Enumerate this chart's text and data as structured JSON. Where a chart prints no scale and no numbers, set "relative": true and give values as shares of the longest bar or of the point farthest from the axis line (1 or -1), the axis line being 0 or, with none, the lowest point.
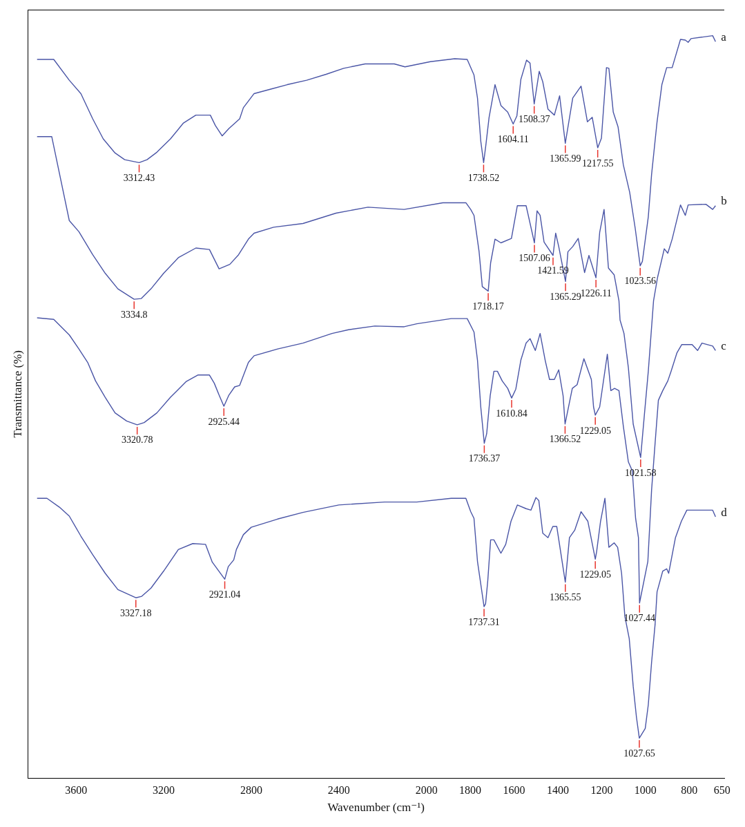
{
  "chart_data": {
    "type": "line",
    "relative": true,
    "xlabel": "Wavenumber (cm⁻¹)",
    "ylabel": "Transmittance (%)",
    "xlim": [
      3820,
      640
    ],
    "xticks": [
      3600,
      3200,
      2800,
      2400,
      2000,
      1800,
      1600,
      1400,
      1200,
      1000,
      800,
      650
    ],
    "grid": false,
    "legend": false,
    "marker": "none",
    "line_style": "solid",
    "series": [
      {
        "name": "a",
        "color": "#4a55a6",
        "x": [
          3778,
          3702,
          3631,
          3578,
          3524,
          3476,
          3422,
          3378,
          3312,
          3276,
          3231,
          3169,
          3111,
          3053,
          2987,
          2964,
          2933,
          2902,
          2853,
          2836,
          2787,
          2711,
          2636,
          2547,
          2458,
          2378,
          2280,
          2147,
          2098,
          1982,
          1871,
          1814,
          1783,
          1767,
          1752,
          1739,
          1729,
          1714,
          1687,
          1660,
          1629,
          1604,
          1587,
          1569,
          1543,
          1527,
          1508,
          1485,
          1469,
          1445,
          1416,
          1392,
          1366,
          1332,
          1294,
          1265,
          1243,
          1218,
          1201,
          1178,
          1167,
          1147,
          1125,
          1101,
          1072,
          1047,
          1024,
          1014,
          987,
          972,
          947,
          925,
          903,
          878,
          840,
          818,
          805,
          792,
          693,
          680
        ],
        "values": [
          0.968,
          0.968,
          0.94,
          0.922,
          0.888,
          0.861,
          0.842,
          0.833,
          0.829,
          0.833,
          0.843,
          0.861,
          0.882,
          0.893,
          0.893,
          0.879,
          0.865,
          0.875,
          0.888,
          0.903,
          0.922,
          0.928,
          0.934,
          0.94,
          0.948,
          0.956,
          0.962,
          0.962,
          0.958,
          0.965,
          0.969,
          0.968,
          0.947,
          0.916,
          0.858,
          0.829,
          0.852,
          0.89,
          0.934,
          0.906,
          0.897,
          0.881,
          0.892,
          0.941,
          0.967,
          0.963,
          0.908,
          0.952,
          0.938,
          0.901,
          0.893,
          0.919,
          0.855,
          0.916,
          0.932,
          0.884,
          0.89,
          0.849,
          0.862,
          0.957,
          0.956,
          0.897,
          0.877,
          0.826,
          0.789,
          0.741,
          0.69,
          0.696,
          0.756,
          0.813,
          0.884,
          0.934,
          0.957,
          0.957,
          0.995,
          0.994,
          0.991,
          0.996,
          1.0,
          0.992
        ]
      },
      {
        "name": "b",
        "color": "#4a55a6",
        "x": [
          3778,
          3711,
          3631,
          3587,
          3524,
          3467,
          3409,
          3335,
          3302,
          3258,
          3200,
          3133,
          3053,
          2991,
          2947,
          2898,
          2858,
          2813,
          2787,
          2698,
          2564,
          2413,
          2267,
          2102,
          1925,
          1820,
          1798,
          1783,
          1760,
          1745,
          1718,
          1707,
          1687,
          1660,
          1612,
          1585,
          1545,
          1507,
          1495,
          1481,
          1463,
          1422,
          1410,
          1396,
          1365,
          1354,
          1332,
          1307,
          1278,
          1258,
          1226,
          1209,
          1189,
          1169,
          1143,
          1121,
          1116,
          1098,
          1078,
          1056,
          1022,
          1005,
          987,
          963,
          945,
          914,
          898,
          878,
          840,
          818,
          805,
          724,
          693,
          680
        ],
        "values": [
          0.864,
          0.864,
          0.751,
          0.736,
          0.705,
          0.68,
          0.659,
          0.645,
          0.646,
          0.659,
          0.68,
          0.701,
          0.714,
          0.712,
          0.686,
          0.692,
          0.705,
          0.726,
          0.734,
          0.742,
          0.747,
          0.761,
          0.769,
          0.766,
          0.775,
          0.775,
          0.766,
          0.758,
          0.71,
          0.662,
          0.656,
          0.694,
          0.726,
          0.721,
          0.727,
          0.771,
          0.771,
          0.721,
          0.764,
          0.758,
          0.722,
          0.704,
          0.734,
          0.716,
          0.669,
          0.709,
          0.716,
          0.727,
          0.681,
          0.704,
          0.674,
          0.735,
          0.766,
          0.687,
          0.678,
          0.643,
          0.617,
          0.599,
          0.553,
          0.477,
          0.432,
          0.489,
          0.548,
          0.643,
          0.674,
          0.713,
          0.707,
          0.726,
          0.772,
          0.758,
          0.772,
          0.773,
          0.766,
          0.771
        ]
      },
      {
        "name": "c",
        "color": "#4a55a6",
        "x": [
          3778,
          3702,
          3631,
          3587,
          3547,
          3511,
          3467,
          3422,
          3369,
          3321,
          3289,
          3231,
          3169,
          3098,
          3044,
          2991,
          2969,
          2947,
          2925,
          2902,
          2876,
          2853,
          2813,
          2787,
          2680,
          2564,
          2431,
          2356,
          2236,
          2102,
          2044,
          1887,
          1814,
          1783,
          1767,
          1752,
          1736,
          1725,
          1709,
          1692,
          1676,
          1654,
          1629,
          1611,
          1592,
          1569,
          1545,
          1527,
          1503,
          1481,
          1458,
          1438,
          1416,
          1396,
          1376,
          1367,
          1334,
          1312,
          1281,
          1247,
          1237,
          1229,
          1209,
          1174,
          1158,
          1141,
          1121,
          1101,
          1078,
          1060,
          1045,
          1032,
          1027,
          989,
          972,
          956,
          941,
          921,
          898,
          883,
          856,
          834,
          787,
          762,
          742,
          693,
          680
        ],
        "values": [
          0.62,
          0.618,
          0.597,
          0.578,
          0.56,
          0.535,
          0.513,
          0.492,
          0.481,
          0.476,
          0.479,
          0.492,
          0.513,
          0.534,
          0.543,
          0.543,
          0.532,
          0.516,
          0.501,
          0.516,
          0.527,
          0.529,
          0.56,
          0.569,
          0.578,
          0.586,
          0.599,
          0.604,
          0.609,
          0.608,
          0.612,
          0.619,
          0.619,
          0.601,
          0.563,
          0.5,
          0.451,
          0.464,
          0.515,
          0.548,
          0.548,
          0.535,
          0.525,
          0.512,
          0.524,
          0.563,
          0.586,
          0.592,
          0.576,
          0.599,
          0.563,
          0.537,
          0.537,
          0.55,
          0.515,
          0.477,
          0.525,
          0.53,
          0.565,
          0.537,
          0.5,
          0.489,
          0.5,
          0.571,
          0.522,
          0.525,
          0.522,
          0.474,
          0.426,
          0.414,
          0.35,
          0.324,
          0.236,
          0.292,
          0.388,
          0.451,
          0.509,
          0.522,
          0.535,
          0.548,
          0.573,
          0.584,
          0.584,
          0.576,
          0.586,
          0.582,
          0.576
        ]
      },
      {
        "name": "d",
        "color": "#4a55a6",
        "x": [
          3778,
          3733,
          3676,
          3631,
          3578,
          3524,
          3467,
          3409,
          3327,
          3300,
          3258,
          3200,
          3133,
          3067,
          3009,
          2978,
          2921,
          2905,
          2880,
          2868,
          2836,
          2800,
          2680,
          2564,
          2400,
          2191,
          2044,
          1887,
          1820,
          1798,
          1783,
          1767,
          1737,
          1730,
          1720,
          1707,
          1692,
          1660,
          1638,
          1614,
          1585,
          1545,
          1523,
          1500,
          1487,
          1469,
          1445,
          1423,
          1405,
          1366,
          1347,
          1323,
          1294,
          1263,
          1229,
          1223,
          1205,
          1185,
          1167,
          1143,
          1127,
          1109,
          1094,
          1074,
          1056,
          1041,
          1028,
          1001,
          987,
          972,
          956,
          947,
          921,
          903,
          894,
          863,
          836,
          811,
          755,
          693,
          680
        ],
        "values": [
          0.377,
          0.377,
          0.365,
          0.353,
          0.326,
          0.301,
          0.276,
          0.254,
          0.243,
          0.245,
          0.256,
          0.279,
          0.308,
          0.316,
          0.315,
          0.291,
          0.268,
          0.285,
          0.294,
          0.308,
          0.328,
          0.338,
          0.349,
          0.358,
          0.368,
          0.372,
          0.372,
          0.377,
          0.377,
          0.359,
          0.35,
          0.292,
          0.231,
          0.235,
          0.266,
          0.321,
          0.321,
          0.303,
          0.315,
          0.346,
          0.368,
          0.363,
          0.361,
          0.378,
          0.374,
          0.33,
          0.324,
          0.339,
          0.339,
          0.264,
          0.324,
          0.334,
          0.359,
          0.346,
          0.295,
          0.305,
          0.346,
          0.377,
          0.311,
          0.317,
          0.311,
          0.276,
          0.218,
          0.188,
          0.124,
          0.082,
          0.054,
          0.067,
          0.099,
          0.156,
          0.207,
          0.251,
          0.279,
          0.282,
          0.276,
          0.324,
          0.346,
          0.361,
          0.361,
          0.361,
          0.352
        ]
      }
    ],
    "annotations": [
      {
        "text": "3312.43",
        "x": 3312,
        "y": 0.829
      },
      {
        "text": "1738.52",
        "x": 1739,
        "y": 0.829
      },
      {
        "text": "1604.11",
        "x": 1604,
        "y": 0.881
      },
      {
        "text": "1508.37",
        "x": 1508,
        "y": 0.908
      },
      {
        "text": "1365.99",
        "x": 1366,
        "y": 0.855
      },
      {
        "text": "1217.55",
        "x": 1218,
        "y": 0.849
      },
      {
        "text": "1023.56",
        "x": 1024,
        "y": 0.69
      },
      {
        "text": "3334.8",
        "x": 3335,
        "y": 0.645
      },
      {
        "text": "1718.17",
        "x": 1718,
        "y": 0.656
      },
      {
        "text": "1507.06",
        "x": 1507,
        "y": 0.721
      },
      {
        "text": "1421.59",
        "x": 1422,
        "y": 0.704
      },
      {
        "text": "1365.29",
        "x": 1365,
        "y": 0.669
      },
      {
        "text": "1226.11",
        "x": 1226,
        "y": 0.674
      },
      {
        "text": "1021.58",
        "x": 1022,
        "y": 0.432
      },
      {
        "text": "3320.78",
        "x": 3321,
        "y": 0.476
      },
      {
        "text": "2925.44",
        "x": 2925,
        "y": 0.501
      },
      {
        "text": "1736.37",
        "x": 1736,
        "y": 0.451
      },
      {
        "text": "1610.84",
        "x": 1611,
        "y": 0.512
      },
      {
        "text": "1366.52",
        "x": 1367,
        "y": 0.477
      },
      {
        "text": "1229.05",
        "x": 1229,
        "y": 0.489
      },
      {
        "text": "1027.44",
        "x": 1027,
        "y": 0.236
      },
      {
        "text": "3327.18",
        "x": 3327,
        "y": 0.243
      },
      {
        "text": "2921.04",
        "x": 2921,
        "y": 0.268
      },
      {
        "text": "1737.31",
        "x": 1737,
        "y": 0.231
      },
      {
        "text": "1365.55",
        "x": 1366,
        "y": 0.264
      },
      {
        "text": "1229.05",
        "x": 1229,
        "y": 0.295
      },
      {
        "text": "1027.65",
        "x": 1028,
        "y": 0.054
      }
    ]
  }
}
